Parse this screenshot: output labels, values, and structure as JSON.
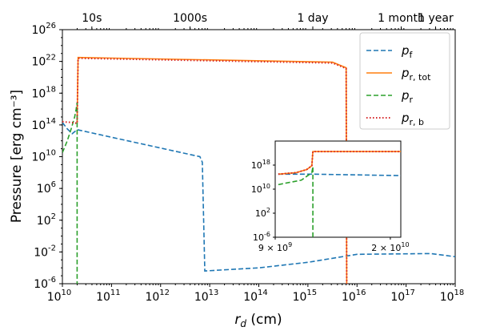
{
  "chart_data": {
    "type": "line",
    "ylabel": "Pressure [erg cm⁻³]",
    "xlabel": "r_d (cm)",
    "x_scale": "log",
    "y_scale": "log",
    "xlim_log10": [
      10,
      18
    ],
    "ylim_log10": [
      -6,
      26
    ],
    "x_ticks": [
      {
        "exp": 10,
        "label": "10"
      },
      {
        "exp": 11,
        "label": "10"
      },
      {
        "exp": 12,
        "label": "10"
      },
      {
        "exp": 13,
        "label": "10"
      },
      {
        "exp": 14,
        "label": "10"
      },
      {
        "exp": 15,
        "label": "10"
      },
      {
        "exp": 16,
        "label": "10"
      },
      {
        "exp": 17,
        "label": "10"
      },
      {
        "exp": 18,
        "label": "10"
      }
    ],
    "y_ticks": [
      {
        "exp": -6,
        "label": "10"
      },
      {
        "exp": -2,
        "label": "10"
      },
      {
        "exp": 2,
        "label": "10"
      },
      {
        "exp": 6,
        "label": "10"
      },
      {
        "exp": 10,
        "label": "10"
      },
      {
        "exp": 14,
        "label": "10"
      },
      {
        "exp": 18,
        "label": "10"
      },
      {
        "exp": 22,
        "label": "10"
      },
      {
        "exp": 26,
        "label": "10"
      }
    ],
    "top_axis_ticks": [
      {
        "label": "10s",
        "x_log10": 10.6
      },
      {
        "label": "1000s",
        "x_log10": 12.6
      },
      {
        "label": "1 day",
        "x_log10": 15.1
      },
      {
        "label": "1 month",
        "x_log10": 16.9
      },
      {
        "label": "1 year",
        "x_log10": 17.6
      }
    ],
    "series": [
      {
        "name": "p_f",
        "label_main": "p",
        "label_sub": "f",
        "color": "#1f77b4",
        "dash": "dashed",
        "x_log10": [
          10.0,
          10.1,
          10.2,
          10.3,
          12.8,
          12.85,
          12.9,
          14.0,
          15.0,
          16.0,
          17.5,
          18.0
        ],
        "y_log10": [
          14.3,
          13.5,
          12.9,
          13.4,
          10.0,
          9.3,
          -4.4,
          -4.0,
          -3.3,
          -2.3,
          -2.2,
          -2.6
        ]
      },
      {
        "name": "p_r,tot",
        "label_main": "p",
        "label_sub": "r, tot",
        "color": "#ff7f0e",
        "dash": "solid",
        "x_log10": [
          10.3,
          10.32,
          15.5,
          15.78,
          15.79,
          15.8
        ],
        "y_log10": [
          14.2,
          22.5,
          21.9,
          21.2,
          -6.0,
          -6.5
        ]
      },
      {
        "name": "p_r",
        "label_main": "p",
        "label_sub": "r",
        "color": "#2ca02c",
        "dash": "dashed",
        "x_log10": [
          10.0,
          10.1,
          10.18,
          10.25,
          10.28,
          10.3,
          10.3
        ],
        "y_log10": [
          10.5,
          12.0,
          13.5,
          15.0,
          16.0,
          16.8,
          -6.5
        ]
      },
      {
        "name": "p_r,b",
        "label_main": "p",
        "label_sub": "r, b",
        "color": "#d62728",
        "dash": "dotted",
        "x_log10": [
          10.0,
          10.2,
          10.3,
          10.32,
          15.5,
          15.78,
          15.79,
          15.8
        ],
        "y_log10": [
          14.4,
          14.3,
          14.2,
          22.4,
          21.8,
          21.1,
          -6.0,
          -6.5
        ]
      }
    ],
    "inset": {
      "x_tick_labels": [
        {
          "value": 9000000000.0,
          "coef": "9 × 10",
          "exp": "9"
        },
        {
          "value": 20000000000.0,
          "coef": "2 × 10",
          "exp": "10"
        }
      ],
      "y_ticks": [
        {
          "exp": 18,
          "label": "10"
        },
        {
          "exp": 10,
          "label": "10"
        },
        {
          "exp": 2,
          "label": "10"
        },
        {
          "exp": -6,
          "label": "10"
        }
      ],
      "xlim": [
        9000000000.0,
        21000000000.0
      ],
      "ylim_log10": [
        -6,
        26
      ],
      "series": [
        {
          "name": "p_f",
          "color": "#1f77b4",
          "dash": "dashed",
          "x": [
            9300000000.0,
            11000000000.0,
            12000000000.0,
            12500000000.0,
            21000000000.0
          ],
          "y_log10": [
            15.0,
            15.0,
            15.0,
            15.0,
            14.5
          ]
        },
        {
          "name": "p_r,tot",
          "color": "#ff7f0e",
          "dash": "solid",
          "x": [
            9300000000.0,
            11000000000.0,
            12000000000.0,
            12500000000.0,
            12600000000.0,
            21000000000.0
          ],
          "y_log10": [
            15.0,
            15.5,
            16.5,
            17.8,
            22.5,
            22.5
          ]
        },
        {
          "name": "p_r",
          "color": "#2ca02c",
          "dash": "dashed",
          "x": [
            9300000000.0,
            10000000000.0,
            11500000000.0,
            12500000000.0,
            12600000000.0,
            12600000000.0
          ],
          "y_log10": [
            11.5,
            12.0,
            13.0,
            15.5,
            17.5,
            -6.0
          ]
        },
        {
          "name": "p_r,b",
          "color": "#d62728",
          "dash": "dotted",
          "x": [
            9300000000.0,
            11000000000.0,
            12000000000.0,
            12500000000.0,
            12600000000.0,
            21000000000.0
          ],
          "y_log10": [
            15.0,
            15.5,
            16.5,
            17.8,
            22.5,
            22.5
          ]
        }
      ]
    }
  }
}
